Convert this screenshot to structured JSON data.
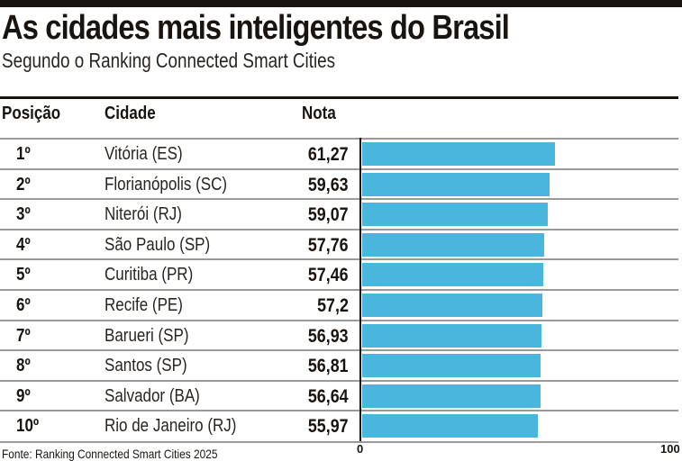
{
  "title": "As cidades mais inteligentes do Brasil",
  "subtitle": "Segundo o Ranking Connected Smart Cities",
  "source": "Fonte: Ranking Connected Smart Cities 2025",
  "chart_data": {
    "type": "bar",
    "orientation": "horizontal",
    "columns": [
      "Posição",
      "Cidade",
      "Nota"
    ],
    "positions": [
      "1º",
      "2º",
      "3º",
      "4º",
      "5º",
      "6º",
      "7º",
      "8º",
      "9º",
      "10º"
    ],
    "categories": [
      "Vitória (ES)",
      "Florianópolis (SC)",
      "Niterói (RJ)",
      "São Paulo (SP)",
      "Curitiba (PR)",
      "Recife (PE)",
      "Barueri (SP)",
      "Santos (SP)",
      "Salvador (BA)",
      "Rio de Janeiro (RJ)"
    ],
    "labels": [
      "61,27",
      "59,63",
      "59,07",
      "57,76",
      "57,46",
      "57,2",
      "56,93",
      "56,81",
      "56,64",
      "55,97"
    ],
    "values": [
      61.27,
      59.63,
      59.07,
      57.76,
      57.46,
      57.2,
      56.93,
      56.81,
      56.64,
      55.97
    ],
    "xlim": [
      0,
      100
    ],
    "ticks": [
      "0",
      "100"
    ],
    "bar_color": "#4ab6de"
  }
}
